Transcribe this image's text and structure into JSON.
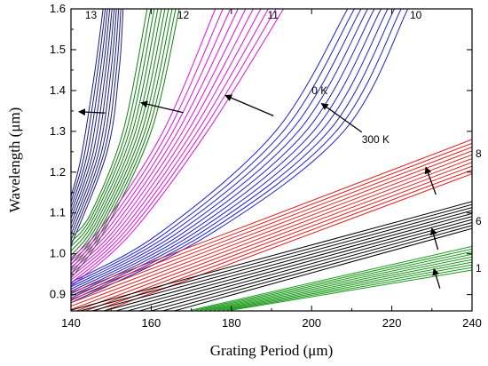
{
  "chart_data": {
    "type": "line",
    "xlabel": "Grating Period (μm)",
    "ylabel": "Wavelength (μm)",
    "xlim": [
      140,
      240
    ],
    "ylim": [
      0.86,
      1.6
    ],
    "xticks": [
      140,
      160,
      180,
      200,
      220,
      240
    ],
    "yticks": [
      0.9,
      1.0,
      1.1,
      1.2,
      1.3,
      1.4,
      1.5,
      1.6
    ],
    "grid": false,
    "lines_per_band": 10,
    "bands": [
      {
        "label": "13",
        "color": "#1a1a8c",
        "lines_low": [
          {
            "x": 148,
            "y": 1.6
          },
          {
            "x": 146,
            "y": 1.45
          },
          {
            "x": 142.6,
            "y": 1.24
          },
          {
            "x": 140,
            "y": 1.14
          }
        ],
        "lines_high": [
          {
            "x": 153,
            "y": 1.6
          },
          {
            "x": 152,
            "y": 1.45
          },
          {
            "x": 149,
            "y": 1.25
          },
          {
            "x": 140,
            "y": 1.02
          }
        ]
      },
      {
        "label": "12",
        "color": "#108010",
        "lines_low": [
          {
            "x": 159,
            "y": 1.6
          },
          {
            "x": 153,
            "y": 1.3
          },
          {
            "x": 145,
            "y": 1.1
          },
          {
            "x": 140,
            "y": 1.04
          }
        ],
        "lines_high": [
          {
            "x": 167,
            "y": 1.6
          },
          {
            "x": 160,
            "y": 1.3
          },
          {
            "x": 148,
            "y": 1.05
          },
          {
            "x": 140,
            "y": 0.94
          }
        ]
      },
      {
        "label": "11",
        "color": "#e010e0",
        "lines_low": [
          {
            "x": 176,
            "y": 1.6
          },
          {
            "x": 163,
            "y": 1.3
          },
          {
            "x": 148,
            "y": 1.07
          },
          {
            "x": 140,
            "y": 0.99
          }
        ],
        "lines_high": [
          {
            "x": 193,
            "y": 1.6
          },
          {
            "x": 174,
            "y": 1.3
          },
          {
            "x": 155,
            "y": 1.05
          },
          {
            "x": 140,
            "y": 0.92
          }
        ]
      },
      {
        "label": "10",
        "color": "#2020d0",
        "lines_low": [
          {
            "x": 209,
            "y": 1.6
          },
          {
            "x": 191,
            "y": 1.3
          },
          {
            "x": 162,
            "y": 1.05
          },
          {
            "x": 140,
            "y": 0.93
          }
        ],
        "lines_high": [
          {
            "x": 224,
            "y": 1.6
          },
          {
            "x": 208,
            "y": 1.3
          },
          {
            "x": 175,
            "y": 1.05
          },
          {
            "x": 140,
            "y": 0.88
          }
        ]
      },
      {
        "label": "8",
        "color": "#e02020",
        "lines_low": [
          {
            "x": 140,
            "y": 0.905
          },
          {
            "x": 240,
            "y": 1.28
          }
        ],
        "lines_high": [
          {
            "x": 140,
            "y": 0.83
          },
          {
            "x": 240,
            "y": 1.196
          }
        ]
      },
      {
        "label": "6",
        "color": "#000000",
        "lines_low": [
          {
            "x": 140,
            "y": 0.862
          },
          {
            "x": 240,
            "y": 1.128
          }
        ],
        "lines_high": [
          {
            "x": 140,
            "y": 0.79
          },
          {
            "x": 240,
            "y": 1.062
          }
        ]
      },
      {
        "label": "1",
        "color": "#1a9a1a",
        "lines_low": [
          {
            "x": 170,
            "y": 0.862
          },
          {
            "x": 240,
            "y": 1.018
          }
        ],
        "lines_high": [
          {
            "x": 180,
            "y": 0.862
          },
          {
            "x": 240,
            "y": 0.96
          }
        ]
      }
    ],
    "temperature_labels": [
      "0 K",
      "300 K"
    ],
    "arrows": [
      {
        "from": {
          "x": 148.5,
          "y": 1.345
        },
        "to": {
          "x": 142,
          "y": 1.348
        }
      },
      {
        "from": {
          "x": 168,
          "y": 1.346
        },
        "to": {
          "x": 157.5,
          "y": 1.37
        }
      },
      {
        "from": {
          "x": 190.5,
          "y": 1.338
        },
        "to": {
          "x": 178.5,
          "y": 1.388
        }
      },
      {
        "from": {
          "x": 212.5,
          "y": 1.298
        },
        "to": {
          "x": 202.5,
          "y": 1.368
        }
      },
      {
        "from": {
          "x": 231,
          "y": 1.145
        },
        "to": {
          "x": 228.5,
          "y": 1.212
        }
      },
      {
        "from": {
          "x": 231.5,
          "y": 1.01
        },
        "to": {
          "x": 230,
          "y": 1.062
        }
      },
      {
        "from": {
          "x": 232,
          "y": 0.915
        },
        "to": {
          "x": 230.5,
          "y": 0.963
        }
      }
    ],
    "annotations": [
      {
        "text": "0 K",
        "x": 200,
        "y": 1.4
      },
      {
        "text": "300 K",
        "x": 212.5,
        "y": 1.28
      }
    ]
  }
}
